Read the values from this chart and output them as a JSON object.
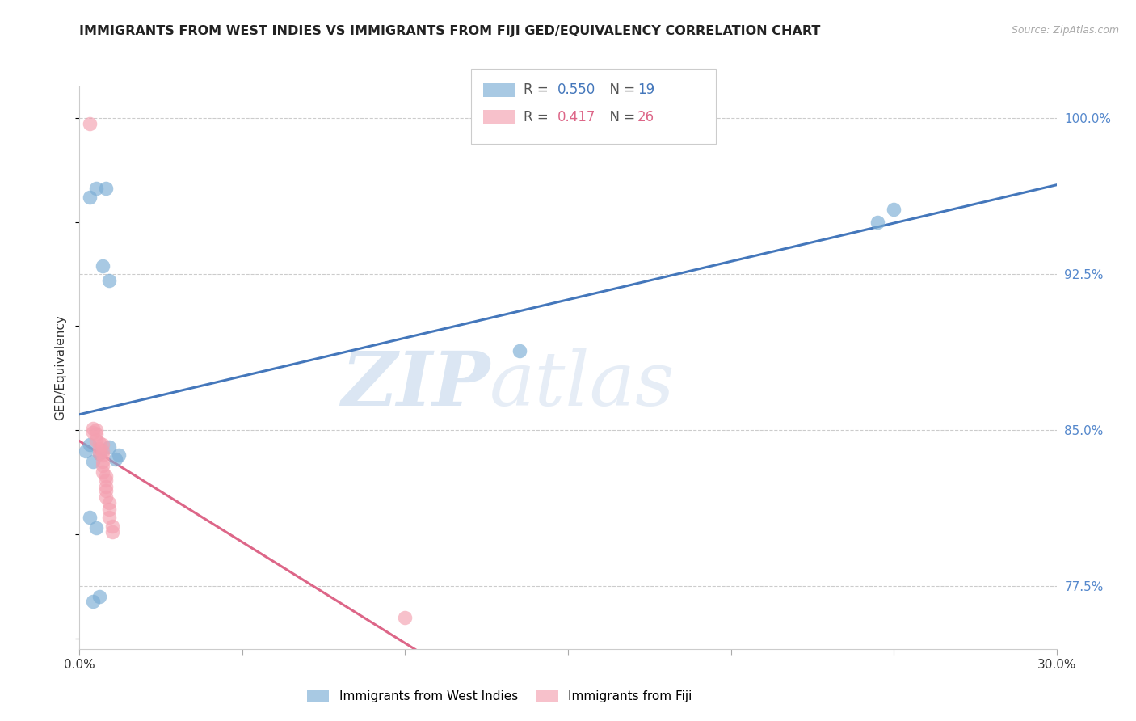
{
  "title": "IMMIGRANTS FROM WEST INDIES VS IMMIGRANTS FROM FIJI GED/EQUIVALENCY CORRELATION CHART",
  "source": "Source: ZipAtlas.com",
  "ylabel": "GED/Equivalency",
  "xlim": [
    0.0,
    0.3
  ],
  "ylim": [
    0.745,
    1.015
  ],
  "xtick_positions": [
    0.0,
    0.05,
    0.1,
    0.15,
    0.2,
    0.25,
    0.3
  ],
  "xtick_labels": [
    "0.0%",
    "",
    "",
    "",
    "",
    "",
    "30.0%"
  ],
  "ytick_vals_right": [
    0.775,
    0.85,
    0.925,
    1.0
  ],
  "ytick_labels_right": [
    "77.5%",
    "85.0%",
    "92.5%",
    "100.0%"
  ],
  "grid_color": "#cccccc",
  "background_color": "#ffffff",
  "blue_color": "#7aadd4",
  "pink_color": "#f4a0b0",
  "blue_line_color": "#4477bb",
  "pink_line_color": "#dd6688",
  "blue_label": "Immigrants from West Indies",
  "pink_label": "Immigrants from Fiji",
  "blue_R": 0.55,
  "blue_N": 19,
  "pink_R": 0.417,
  "pink_N": 26,
  "watermark_zip": "ZIP",
  "watermark_atlas": "atlas",
  "west_indies_x": [
    0.005,
    0.008,
    0.003,
    0.002,
    0.006,
    0.009,
    0.011,
    0.004,
    0.012,
    0.007,
    0.009,
    0.003,
    0.005,
    0.006,
    0.004,
    0.003,
    0.135,
    0.25,
    0.245
  ],
  "west_indies_y": [
    0.966,
    0.966,
    0.962,
    0.84,
    0.839,
    0.842,
    0.836,
    0.835,
    0.838,
    0.929,
    0.922,
    0.808,
    0.803,
    0.77,
    0.768,
    0.843,
    0.888,
    0.956,
    0.95
  ],
  "fiji_x": [
    0.003,
    0.004,
    0.004,
    0.005,
    0.005,
    0.005,
    0.006,
    0.006,
    0.006,
    0.007,
    0.007,
    0.007,
    0.007,
    0.007,
    0.007,
    0.008,
    0.008,
    0.008,
    0.008,
    0.008,
    0.009,
    0.009,
    0.009,
    0.01,
    0.01,
    0.1
  ],
  "fiji_y": [
    0.997,
    0.851,
    0.849,
    0.85,
    0.848,
    0.845,
    0.844,
    0.841,
    0.839,
    0.843,
    0.84,
    0.838,
    0.835,
    0.833,
    0.83,
    0.828,
    0.826,
    0.823,
    0.821,
    0.818,
    0.815,
    0.812,
    0.808,
    0.804,
    0.801,
    0.76
  ],
  "spine_color": "#dddddd"
}
